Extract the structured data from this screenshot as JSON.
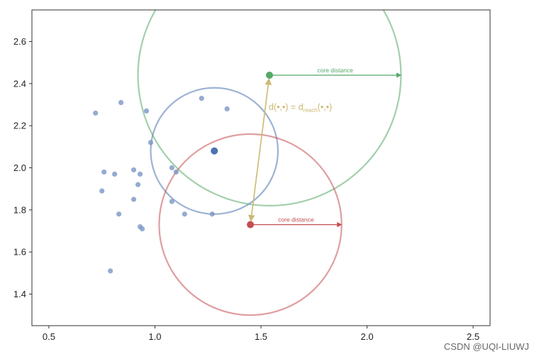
{
  "chart_data": {
    "type": "scatter",
    "xlim": [
      0.42,
      2.58
    ],
    "ylim": [
      1.25,
      2.75
    ],
    "x_ticks": [
      "0.5",
      "1.0",
      "1.5",
      "2.0",
      "2.5"
    ],
    "x_tick_values": [
      0.5,
      1.0,
      1.5,
      2.0,
      2.5
    ],
    "y_ticks": [
      "1.4",
      "1.6",
      "1.8",
      "2.0",
      "2.2",
      "2.4",
      "2.6"
    ],
    "y_tick_values": [
      1.4,
      1.6,
      1.8,
      2.0,
      2.2,
      2.4,
      2.6
    ],
    "grid": false,
    "points": [
      {
        "x": 0.72,
        "y": 2.26
      },
      {
        "x": 0.84,
        "y": 2.31
      },
      {
        "x": 0.96,
        "y": 2.27
      },
      {
        "x": 1.22,
        "y": 2.33
      },
      {
        "x": 1.34,
        "y": 2.28
      },
      {
        "x": 0.98,
        "y": 2.12
      },
      {
        "x": 0.76,
        "y": 1.98
      },
      {
        "x": 0.81,
        "y": 1.97
      },
      {
        "x": 0.9,
        "y": 1.99
      },
      {
        "x": 0.93,
        "y": 1.97
      },
      {
        "x": 1.08,
        "y": 2.0
      },
      {
        "x": 1.1,
        "y": 1.98
      },
      {
        "x": 0.75,
        "y": 1.89
      },
      {
        "x": 0.92,
        "y": 1.92
      },
      {
        "x": 0.9,
        "y": 1.85
      },
      {
        "x": 1.08,
        "y": 1.84
      },
      {
        "x": 0.83,
        "y": 1.78
      },
      {
        "x": 1.14,
        "y": 1.78
      },
      {
        "x": 1.27,
        "y": 1.78
      },
      {
        "x": 0.93,
        "y": 1.72
      },
      {
        "x": 0.94,
        "y": 1.71
      },
      {
        "x": 0.79,
        "y": 1.51
      }
    ],
    "highlighted": [
      {
        "x": 1.28,
        "y": 2.08,
        "color": "#4c72b0",
        "radius": 0.3
      },
      {
        "x": 1.54,
        "y": 2.44,
        "color": "#55a868",
        "radius": 0.62
      },
      {
        "x": 1.45,
        "y": 1.73,
        "color": "#c44e52",
        "radius": 0.43
      }
    ],
    "point_color": "#7b96c6",
    "annotations": {
      "green_core_label": "core distance",
      "red_core_label": "core distance",
      "reach_label": "d(•,•) = d",
      "reach_subscript": "reach",
      "reach_suffix": "(•,•)",
      "reach_color": "#ccb974"
    }
  },
  "watermark": "CSDN @UQI-LIUWJ"
}
